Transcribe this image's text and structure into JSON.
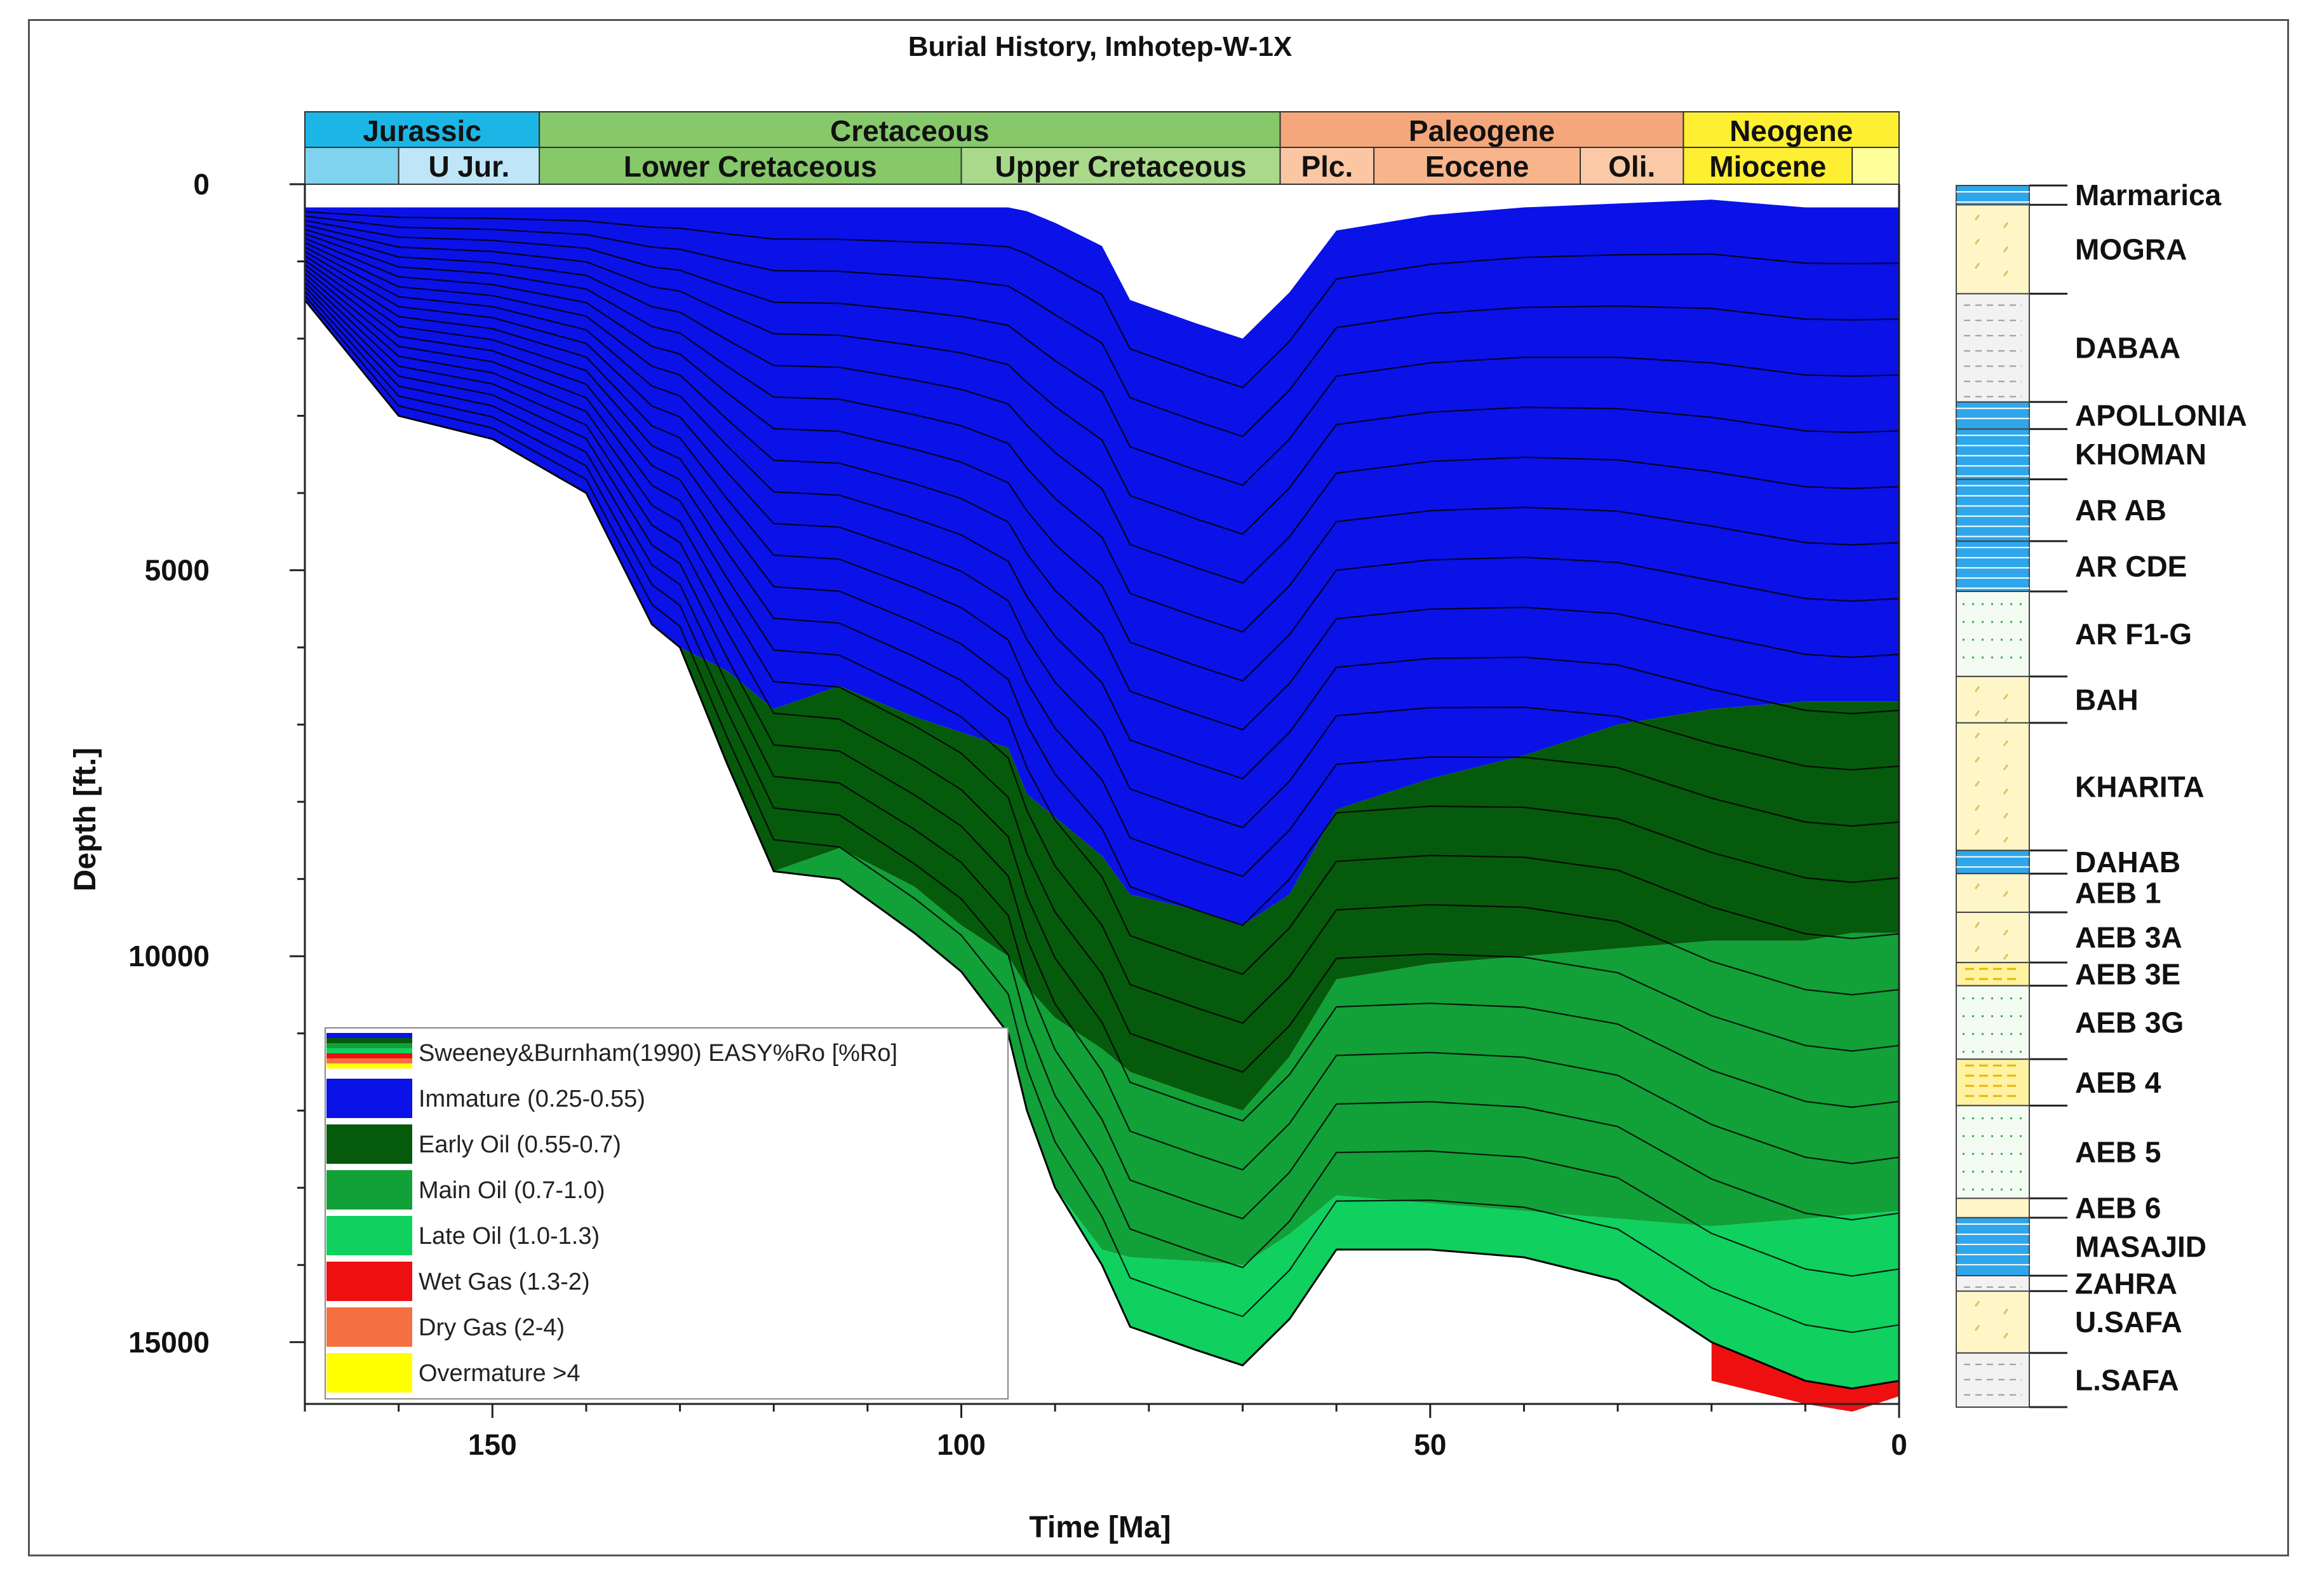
{
  "colors": {
    "immature": "#0a12e8",
    "early_oil": "#065a0c",
    "main_oil": "#12a039",
    "late_oil": "#10d060",
    "wet_gas": "#ee1010",
    "dry_gas": "#f47040",
    "overmature": "#ffff00",
    "jurassic": "#1bb6e6",
    "cretaceous": "#86c86a",
    "paleogene": "#f4a77a",
    "neogene": "#ffef33"
  },
  "chart_data": {
    "type": "area",
    "title": "Burial History, Imhotep-W-1X",
    "xlabel": "Time [Ma]",
    "ylabel": "Depth [ft.]",
    "xlim": [
      170,
      0
    ],
    "ylim": [
      0,
      15800
    ],
    "x_ticks": [
      150,
      100,
      50,
      0
    ],
    "x_tick_labels": [
      "150",
      "100",
      "50",
      "0"
    ],
    "y_ticks": [
      0,
      5000,
      10000,
      15000
    ],
    "y_tick_labels": [
      "0",
      "5000",
      "10000",
      "15000"
    ],
    "periods": [
      {
        "name": "Jurassic",
        "start": 170,
        "end": 145,
        "color": "#1bb6e6"
      },
      {
        "name": "Cretaceous",
        "start": 145,
        "end": 66,
        "color": "#86c86a"
      },
      {
        "name": "Paleogene",
        "start": 66,
        "end": 23,
        "color": "#f4a77a"
      },
      {
        "name": "Neogene",
        "start": 23,
        "end": 0,
        "color": "#ffef33"
      }
    ],
    "epochs": [
      {
        "name": "",
        "start": 170,
        "end": 160,
        "color": "#7fd3ef"
      },
      {
        "name": "U Jur.",
        "start": 160,
        "end": 145,
        "color": "#bfe6f8"
      },
      {
        "name": "Lower Cretaceous",
        "start": 145,
        "end": 100,
        "color": "#86c86a"
      },
      {
        "name": "Upper Cretaceous",
        "start": 100,
        "end": 66,
        "color": "#a9d98a"
      },
      {
        "name": "Plc.",
        "start": 66,
        "end": 56,
        "color": "#fbc7a3"
      },
      {
        "name": "Eocene",
        "start": 56,
        "end": 34,
        "color": "#f8b58c"
      },
      {
        "name": "Oli.",
        "start": 34,
        "end": 23,
        "color": "#fbc9a6"
      },
      {
        "name": "Miocene",
        "start": 23,
        "end": 5,
        "color": "#ffef33"
      },
      {
        "name": "",
        "start": 5,
        "end": 0,
        "color": "#ffff99"
      }
    ],
    "maturity_boundaries": {
      "x": [
        170,
        160,
        150,
        140,
        133,
        130,
        125,
        120,
        113,
        105,
        100,
        95,
        93,
        90,
        85,
        82,
        75,
        70,
        65,
        60,
        50,
        40,
        30,
        20,
        10,
        5,
        0
      ],
      "surface": [
        300,
        300,
        300,
        300,
        300,
        300,
        300,
        300,
        300,
        300,
        300,
        300,
        350,
        500,
        800,
        1500,
        1800,
        2000,
        1400,
        600,
        400,
        300,
        250,
        200,
        300,
        300,
        300
      ],
      "early_oil": [
        null,
        null,
        null,
        null,
        null,
        6000,
        6300,
        6800,
        6500,
        6900,
        7100,
        7300,
        7900,
        8200,
        8700,
        9200,
        9400,
        9600,
        9200,
        8100,
        7700,
        7400,
        7000,
        6800,
        6700,
        6700,
        6700
      ],
      "main_oil": [
        null,
        null,
        null,
        null,
        null,
        null,
        null,
        8900,
        8600,
        9100,
        9600,
        10000,
        10400,
        10800,
        11200,
        11500,
        11800,
        12000,
        11300,
        10300,
        10100,
        10000,
        9900,
        9800,
        9800,
        9700,
        9700
      ],
      "late_oil": [
        null,
        null,
        null,
        null,
        null,
        null,
        null,
        null,
        null,
        null,
        null,
        null,
        null,
        13200,
        13800,
        13900,
        13950,
        14000,
        13600,
        13100,
        13200,
        13300,
        13400,
        13500,
        13400,
        13350,
        13300
      ],
      "base": [
        1500,
        3000,
        3300,
        4000,
        5700,
        6000,
        7500,
        8900,
        9000,
        9700,
        10200,
        11000,
        12000,
        13000,
        14000,
        14800,
        15100,
        15300,
        14700,
        13800,
        13800,
        13900,
        14200,
        15000,
        15500,
        15600,
        15500
      ],
      "wet_gas": [
        null,
        null,
        null,
        null,
        null,
        null,
        null,
        null,
        null,
        null,
        null,
        null,
        null,
        null,
        null,
        null,
        null,
        null,
        null,
        null,
        null,
        null,
        null,
        15500,
        15800,
        15900,
        15700
      ]
    },
    "legend_title": "Sweeney&Burnham(1990) EASY%Ro [%Ro]",
    "legend": [
      {
        "label": "Immature (0.25-0.55)",
        "color": "#0a12e8"
      },
      {
        "label": "Early Oil (0.55-0.7)",
        "color": "#065a0c"
      },
      {
        "label": "Main Oil (0.7-1.0)",
        "color": "#12a039"
      },
      {
        "label": "Late Oil (1.0-1.3)",
        "color": "#10d060"
      },
      {
        "label": "Wet Gas (1.3-2)",
        "color": "#ee1010"
      },
      {
        "label": "Dry Gas (2-4)",
        "color": "#f47040"
      },
      {
        "label": "Overmature >4",
        "color": "#ffff00"
      }
    ],
    "formations": [
      {
        "name": "Marmarica",
        "top": 0,
        "bottom": 250,
        "lith": "limestone"
      },
      {
        "name": "MOGRA",
        "top": 250,
        "bottom": 1400,
        "lith": "sandstone"
      },
      {
        "name": "DABAA",
        "top": 1400,
        "bottom": 2800,
        "lith": "shale"
      },
      {
        "name": "APOLLONIA",
        "top": 2800,
        "bottom": 3150,
        "lith": "limestone"
      },
      {
        "name": "KHOMAN",
        "top": 3150,
        "bottom": 3800,
        "lith": "limestone"
      },
      {
        "name": "AR  AB",
        "top": 3800,
        "bottom": 4600,
        "lith": "limestone"
      },
      {
        "name": "AR  CDE",
        "top": 4600,
        "bottom": 5250,
        "lith": "limestone"
      },
      {
        "name": "AR  F1-G",
        "top": 5250,
        "bottom": 6350,
        "lith": "siltstone"
      },
      {
        "name": "BAH",
        "top": 6350,
        "bottom": 6950,
        "lith": "sandstone"
      },
      {
        "name": "KHARITA",
        "top": 6950,
        "bottom": 8600,
        "lith": "sandstone"
      },
      {
        "name": "DAHAB",
        "top": 8600,
        "bottom": 8900,
        "lith": "limestone"
      },
      {
        "name": "AEB  1",
        "top": 8900,
        "bottom": 9400,
        "lith": "sandstone"
      },
      {
        "name": "AEB  3A",
        "top": 9400,
        "bottom": 10050,
        "lith": "sandstone"
      },
      {
        "name": "AEB  3E",
        "top": 10050,
        "bottom": 10350,
        "lith": "marl"
      },
      {
        "name": "AEB  3G",
        "top": 10350,
        "bottom": 11300,
        "lith": "siltstone"
      },
      {
        "name": "AEB  4",
        "top": 11300,
        "bottom": 11900,
        "lith": "marl"
      },
      {
        "name": "AEB  5",
        "top": 11900,
        "bottom": 13100,
        "lith": "siltstone"
      },
      {
        "name": "AEB  6",
        "top": 13100,
        "bottom": 13350,
        "lith": "sandstone"
      },
      {
        "name": "MASAJID",
        "top": 13350,
        "bottom": 14100,
        "lith": "limestone"
      },
      {
        "name": "ZAHRA",
        "top": 14100,
        "bottom": 14300,
        "lith": "shale"
      },
      {
        "name": "U.SAFA",
        "top": 14300,
        "bottom": 15100,
        "lith": "sandstone"
      },
      {
        "name": "L.SAFA",
        "top": 15100,
        "bottom": 15800,
        "lith": "shale"
      }
    ]
  }
}
